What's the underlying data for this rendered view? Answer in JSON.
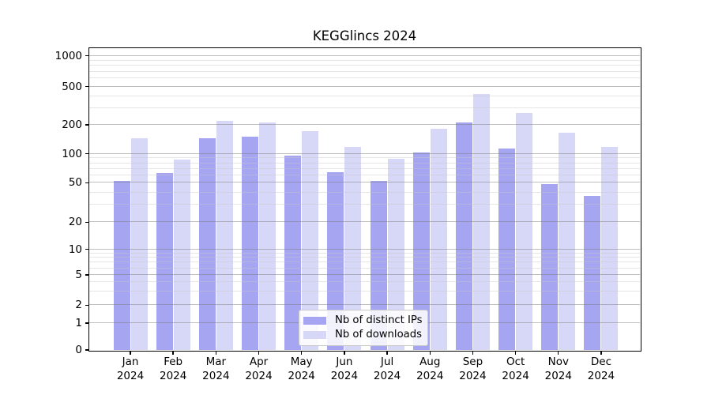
{
  "chart_data": {
    "type": "bar",
    "title": "KEGGlincs 2024",
    "categories": [
      "Jan",
      "Feb",
      "Mar",
      "Apr",
      "May",
      "Jun",
      "Jul",
      "Aug",
      "Sep",
      "Oct",
      "Nov",
      "Dec"
    ],
    "year_label": "2024",
    "series": [
      {
        "name": "Nb of distinct IPs",
        "color": "#a5a5f2",
        "values": [
          52,
          63,
          144,
          150,
          95,
          65,
          52,
          103,
          210,
          113,
          49,
          37
        ]
      },
      {
        "name": "Nb of downloads",
        "color": "#d7d7f8",
        "values": [
          145,
          88,
          222,
          210,
          172,
          117,
          89,
          182,
          420,
          268,
          167,
          118
        ]
      }
    ],
    "yaxis": {
      "scale": "log-like (0,1,2,5 pattern)",
      "ticks": [
        0,
        1,
        2,
        5,
        10,
        20,
        50,
        100,
        200,
        500,
        1000
      ],
      "tick_labels": [
        "0",
        "1",
        "2",
        "5",
        "10",
        "20",
        "50",
        "100",
        "200",
        "500",
        "1000"
      ],
      "minor_ticks": [
        3,
        4,
        6,
        7,
        8,
        9,
        30,
        40,
        60,
        70,
        80,
        90,
        300,
        400,
        600,
        700,
        800,
        900
      ]
    },
    "grid": true,
    "legend_position": "lower center"
  },
  "colors": {
    "distinct_ips_bar": "#a5a5f2",
    "downloads_bar": "#d7d7f8",
    "major_grid": "#c2c2c2",
    "minor_grid": "#eaeaea",
    "axis": "#000000"
  }
}
